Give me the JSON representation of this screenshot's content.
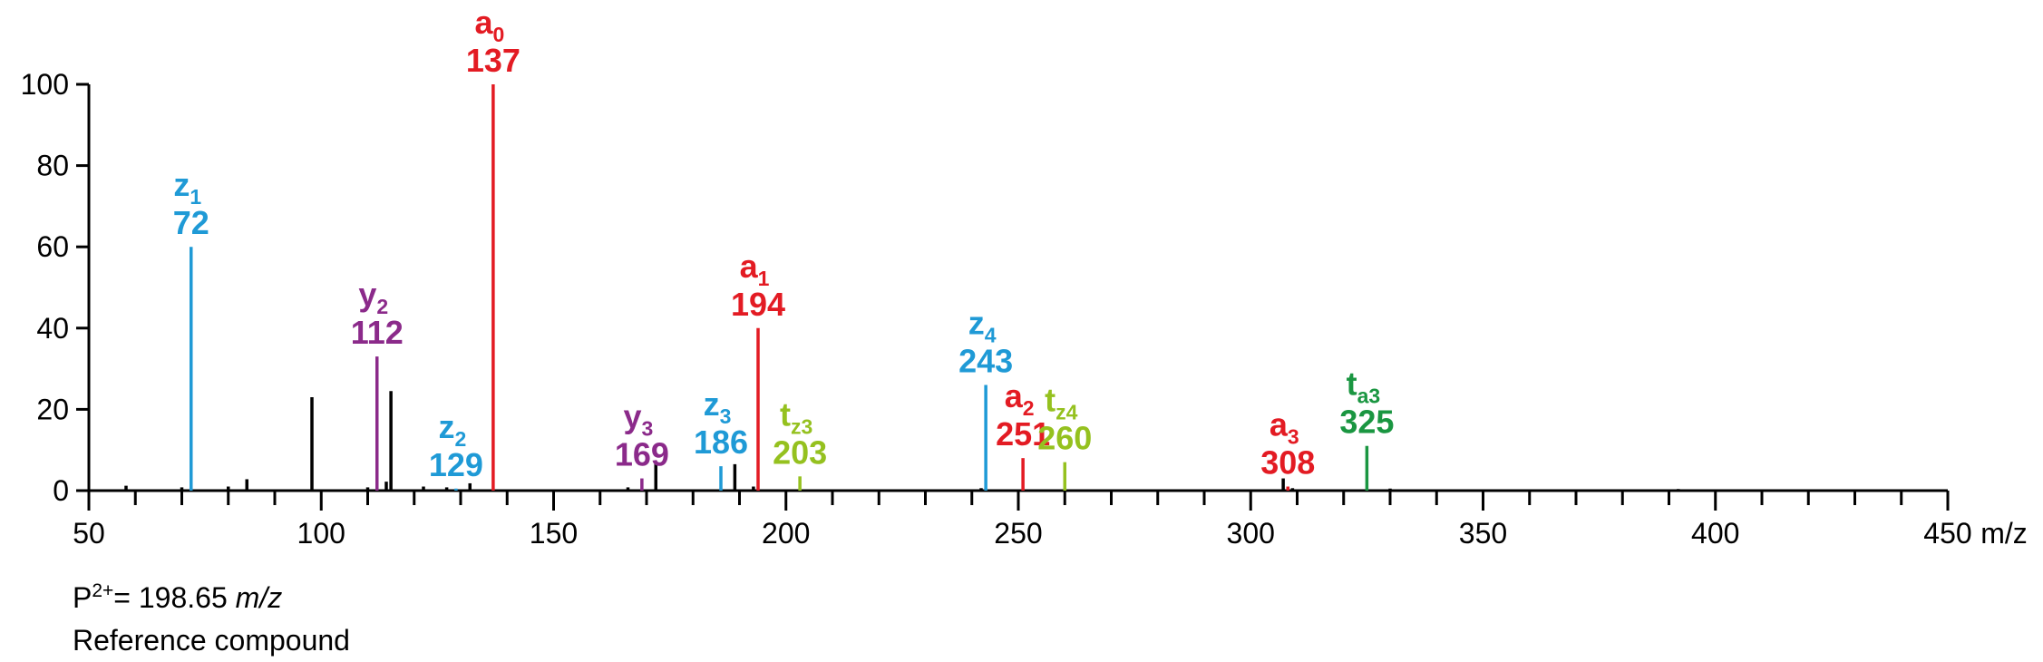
{
  "chart_data": {
    "type": "bar",
    "x_unit": "m/z",
    "xlim": [
      50,
      450
    ],
    "ylim": [
      0,
      100
    ],
    "x_ticks": [
      50,
      100,
      150,
      200,
      250,
      300,
      350,
      400,
      450
    ],
    "y_ticks": [
      0,
      20,
      40,
      60,
      80,
      100
    ],
    "colors": {
      "a": "#e31b23",
      "z": "#1f9ad6",
      "y": "#8b2a8a",
      "tz": "#95c11f",
      "ta": "#1a9641",
      "other": "#000000"
    },
    "annotated_peaks": [
      {
        "ion": "z",
        "sub": "1",
        "mz": 72,
        "intensity": 60,
        "color": "#1f9ad6"
      },
      {
        "ion": "y",
        "sub": "2",
        "mz": 112,
        "intensity": 33,
        "color": "#8b2a8a"
      },
      {
        "ion": "z",
        "sub": "2",
        "mz": 129,
        "intensity": 0.5,
        "color": "#1f9ad6"
      },
      {
        "ion": "a",
        "sub": "0",
        "mz": 137,
        "intensity": 100,
        "color": "#e31b23"
      },
      {
        "ion": "y",
        "sub": "3",
        "mz": 169,
        "intensity": 3,
        "color": "#8b2a8a"
      },
      {
        "ion": "z",
        "sub": "3",
        "mz": 186,
        "intensity": 6,
        "color": "#1f9ad6"
      },
      {
        "ion": "a",
        "sub": "1",
        "mz": 194,
        "intensity": 40,
        "color": "#e31b23"
      },
      {
        "ion": "t",
        "sub": "z3",
        "mz": 203,
        "intensity": 3.5,
        "color": "#95c11f"
      },
      {
        "ion": "z",
        "sub": "4",
        "mz": 243,
        "intensity": 26,
        "color": "#1f9ad6"
      },
      {
        "ion": "a",
        "sub": "2",
        "mz": 251,
        "intensity": 8,
        "color": "#e31b23"
      },
      {
        "ion": "t",
        "sub": "z4",
        "mz": 260,
        "intensity": 7,
        "color": "#95c11f"
      },
      {
        "ion": "a",
        "sub": "3",
        "mz": 308,
        "intensity": 1,
        "color": "#e31b23"
      },
      {
        "ion": "t",
        "sub": "a3",
        "mz": 325,
        "intensity": 11,
        "color": "#1a9641"
      }
    ],
    "unlabeled_peaks": [
      {
        "mz": 58,
        "intensity": 1.2
      },
      {
        "mz": 70,
        "intensity": 0.8
      },
      {
        "mz": 80,
        "intensity": 1
      },
      {
        "mz": 84,
        "intensity": 2.8
      },
      {
        "mz": 98,
        "intensity": 23
      },
      {
        "mz": 110,
        "intensity": 0.8
      },
      {
        "mz": 114,
        "intensity": 2.2
      },
      {
        "mz": 115,
        "intensity": 24.5
      },
      {
        "mz": 122,
        "intensity": 1
      },
      {
        "mz": 127,
        "intensity": 0.8
      },
      {
        "mz": 132,
        "intensity": 1.8
      },
      {
        "mz": 166,
        "intensity": 0.8
      },
      {
        "mz": 172,
        "intensity": 7
      },
      {
        "mz": 189,
        "intensity": 6.5
      },
      {
        "mz": 193,
        "intensity": 1
      },
      {
        "mz": 242,
        "intensity": 0.6
      },
      {
        "mz": 307,
        "intensity": 3
      },
      {
        "mz": 309,
        "intensity": 0.6
      },
      {
        "mz": 330,
        "intensity": 0.5
      },
      {
        "mz": 392,
        "intensity": 0.4
      }
    ]
  },
  "footer": {
    "precursor_prefix": "P",
    "precursor_charge": "2+",
    "precursor_value": "= 198.65",
    "precursor_unit": "m/z",
    "compound": "Reference compound"
  }
}
